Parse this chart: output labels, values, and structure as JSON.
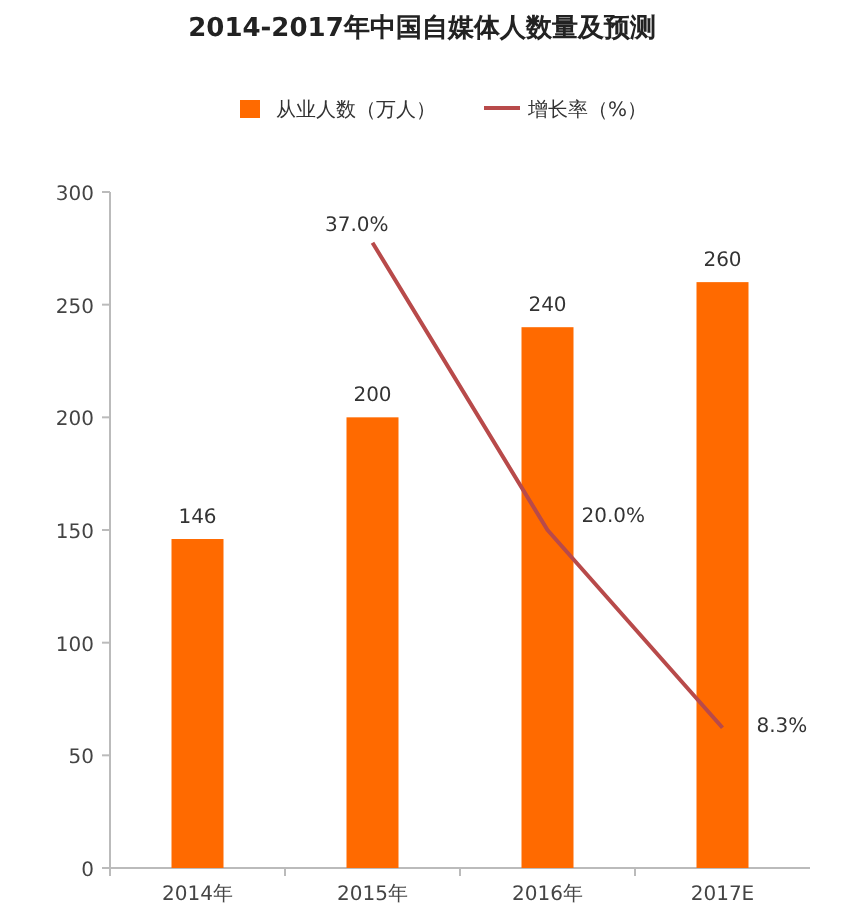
{
  "chart_data": {
    "type": "bar",
    "title": "2014-2017年中国自媒体人数量及预测",
    "categories": [
      "2014年",
      "2015年",
      "2016年",
      "2017E"
    ],
    "series": [
      {
        "name": "从业人数（万人）",
        "color": "#ff6a00",
        "values": [
          146,
          200,
          240,
          260
        ],
        "value_labels": [
          "146",
          "200",
          "240",
          "260"
        ]
      },
      {
        "name": "增长率（%）",
        "type": "line",
        "axis": "y2",
        "color": "#b84a4a",
        "values": [
          null,
          37.0,
          20.0,
          8.3
        ],
        "value_labels": [
          null,
          "37.0%",
          "20.0%",
          "8.3%"
        ]
      }
    ],
    "ylim": [
      0,
      300
    ],
    "yticks": [
      0,
      50,
      100,
      150,
      200,
      250,
      300
    ],
    "y2lim": [
      0,
      40
    ],
    "legend": "top",
    "grid": false
  }
}
